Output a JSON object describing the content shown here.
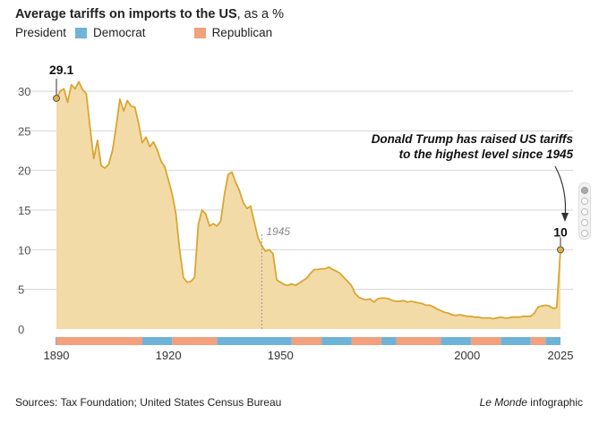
{
  "header": {
    "title_bold": "Average tariffs on imports to the US",
    "title_suffix": ", as a %"
  },
  "legend": {
    "label": "President",
    "items": [
      {
        "label": "Democrat",
        "color": "#6fb3d9"
      },
      {
        "label": "Republican",
        "color": "#f2a07e"
      }
    ]
  },
  "colors": {
    "area_fill": "#f3dba8",
    "line": "#d9a632",
    "grid": "#d6d6d6",
    "axis_text": "#555555"
  },
  "chart_data": {
    "type": "area",
    "title": "Average tariffs on imports to the US, as a %",
    "xlim": [
      1888,
      2026
    ],
    "ylim": [
      0,
      32
    ],
    "x_ticks": [
      1890,
      1920,
      1950,
      2000,
      2025
    ],
    "y_ticks": [
      0,
      5,
      10,
      15,
      20,
      25,
      30
    ],
    "grid": true,
    "series": [
      {
        "values": [
          [
            1890,
            29.1
          ],
          [
            1891,
            30.0
          ],
          [
            1892,
            30.3
          ],
          [
            1893,
            28.6
          ],
          [
            1894,
            30.8
          ],
          [
            1895,
            30.3
          ],
          [
            1896,
            31.2
          ],
          [
            1897,
            30.2
          ],
          [
            1898,
            29.7
          ],
          [
            1899,
            25.5
          ],
          [
            1900,
            21.5
          ],
          [
            1901,
            23.8
          ],
          [
            1902,
            20.6
          ],
          [
            1903,
            20.3
          ],
          [
            1904,
            20.8
          ],
          [
            1905,
            22.5
          ],
          [
            1906,
            25.5
          ],
          [
            1907,
            29.0
          ],
          [
            1908,
            27.5
          ],
          [
            1909,
            28.8
          ],
          [
            1910,
            28.1
          ],
          [
            1911,
            28.0
          ],
          [
            1912,
            26.0
          ],
          [
            1913,
            23.5
          ],
          [
            1914,
            24.2
          ],
          [
            1915,
            23.0
          ],
          [
            1916,
            23.6
          ],
          [
            1917,
            22.6
          ],
          [
            1918,
            21.2
          ],
          [
            1919,
            20.5
          ],
          [
            1920,
            18.8
          ],
          [
            1921,
            17.0
          ],
          [
            1922,
            14.5
          ],
          [
            1923,
            10.0
          ],
          [
            1924,
            6.5
          ],
          [
            1925,
            5.9
          ],
          [
            1926,
            6.0
          ],
          [
            1927,
            6.5
          ],
          [
            1928,
            13.2
          ],
          [
            1929,
            15.0
          ],
          [
            1930,
            14.5
          ],
          [
            1931,
            13.0
          ],
          [
            1932,
            13.3
          ],
          [
            1933,
            13.0
          ],
          [
            1934,
            13.6
          ],
          [
            1935,
            17.0
          ],
          [
            1936,
            19.5
          ],
          [
            1937,
            19.8
          ],
          [
            1938,
            18.5
          ],
          [
            1939,
            17.5
          ],
          [
            1940,
            16.0
          ],
          [
            1941,
            15.2
          ],
          [
            1942,
            15.5
          ],
          [
            1943,
            13.5
          ],
          [
            1944,
            11.5
          ],
          [
            1945,
            10.5
          ],
          [
            1946,
            9.8
          ],
          [
            1947,
            10.0
          ],
          [
            1948,
            9.5
          ],
          [
            1949,
            6.2
          ],
          [
            1950,
            5.9
          ],
          [
            1951,
            5.6
          ],
          [
            1952,
            5.5
          ],
          [
            1953,
            5.7
          ],
          [
            1954,
            5.5
          ],
          [
            1955,
            5.8
          ],
          [
            1956,
            6.1
          ],
          [
            1957,
            6.4
          ],
          [
            1958,
            7.0
          ],
          [
            1959,
            7.5
          ],
          [
            1960,
            7.5
          ],
          [
            1961,
            7.6
          ],
          [
            1962,
            7.6
          ],
          [
            1963,
            7.8
          ],
          [
            1964,
            7.5
          ],
          [
            1965,
            7.3
          ],
          [
            1966,
            7.0
          ],
          [
            1967,
            6.5
          ],
          [
            1968,
            6.0
          ],
          [
            1969,
            5.5
          ],
          [
            1970,
            4.5
          ],
          [
            1971,
            4.0
          ],
          [
            1972,
            3.8
          ],
          [
            1973,
            3.7
          ],
          [
            1974,
            3.8
          ],
          [
            1975,
            3.4
          ],
          [
            1976,
            3.8
          ],
          [
            1977,
            3.9
          ],
          [
            1978,
            3.9
          ],
          [
            1979,
            3.8
          ],
          [
            1980,
            3.6
          ],
          [
            1981,
            3.5
          ],
          [
            1982,
            3.5
          ],
          [
            1983,
            3.6
          ],
          [
            1984,
            3.4
          ],
          [
            1985,
            3.5
          ],
          [
            1986,
            3.4
          ],
          [
            1987,
            3.3
          ],
          [
            1988,
            3.2
          ],
          [
            1989,
            3.0
          ],
          [
            1990,
            3.0
          ],
          [
            1991,
            2.8
          ],
          [
            1992,
            2.5
          ],
          [
            1993,
            2.3
          ],
          [
            1994,
            2.1
          ],
          [
            1995,
            2.0
          ],
          [
            1996,
            1.8
          ],
          [
            1997,
            1.7
          ],
          [
            1998,
            1.8
          ],
          [
            1999,
            1.7
          ],
          [
            2000,
            1.6
          ],
          [
            2001,
            1.6
          ],
          [
            2002,
            1.5
          ],
          [
            2003,
            1.5
          ],
          [
            2004,
            1.4
          ],
          [
            2005,
            1.4
          ],
          [
            2006,
            1.4
          ],
          [
            2007,
            1.3
          ],
          [
            2008,
            1.4
          ],
          [
            2009,
            1.5
          ],
          [
            2010,
            1.4
          ],
          [
            2011,
            1.4
          ],
          [
            2012,
            1.5
          ],
          [
            2013,
            1.5
          ],
          [
            2014,
            1.5
          ],
          [
            2015,
            1.6
          ],
          [
            2016,
            1.6
          ],
          [
            2017,
            1.6
          ],
          [
            2018,
            2.0
          ],
          [
            2019,
            2.8
          ],
          [
            2020,
            2.9
          ],
          [
            2021,
            3.0
          ],
          [
            2022,
            2.9
          ],
          [
            2023,
            2.6
          ],
          [
            2024,
            2.7
          ],
          [
            2025,
            10.0
          ]
        ]
      }
    ],
    "presidents": [
      {
        "start": 1888,
        "end": 1890,
        "party": "Democrat"
      },
      {
        "start": 1890,
        "end": 1913,
        "party": "Republican"
      },
      {
        "start": 1913,
        "end": 1921,
        "party": "Democrat"
      },
      {
        "start": 1921,
        "end": 1933,
        "party": "Republican"
      },
      {
        "start": 1933,
        "end": 1953,
        "party": "Democrat"
      },
      {
        "start": 1953,
        "end": 1961,
        "party": "Republican"
      },
      {
        "start": 1961,
        "end": 1969,
        "party": "Democrat"
      },
      {
        "start": 1969,
        "end": 1977,
        "party": "Republican"
      },
      {
        "start": 1977,
        "end": 1981,
        "party": "Democrat"
      },
      {
        "start": 1981,
        "end": 1993,
        "party": "Republican"
      },
      {
        "start": 1993,
        "end": 2001,
        "party": "Democrat"
      },
      {
        "start": 2001,
        "end": 2009,
        "party": "Republican"
      },
      {
        "start": 2009,
        "end": 2017,
        "party": "Democrat"
      },
      {
        "start": 2017,
        "end": 2021,
        "party": "Republican"
      },
      {
        "start": 2021,
        "end": 2025,
        "party": "Democrat"
      },
      {
        "start": 2025,
        "end": 2026,
        "party": "Republican"
      }
    ],
    "annotations": {
      "start_value_label": "29.1",
      "end_value_label": "10",
      "marker_year": 1945,
      "marker_label": "1945",
      "callout_line1": "Donald Trump has raised US tariffs",
      "callout_line2": "to the highest level since 1945"
    }
  },
  "footer": {
    "sources": "Sources: Tax Foundation; United States Census Bureau",
    "credit_italic": "Le Monde",
    "credit_rest": " infographic"
  }
}
